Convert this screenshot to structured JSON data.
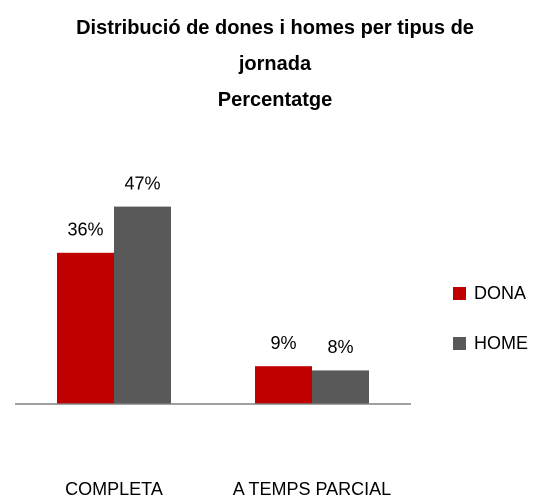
{
  "chart_data": {
    "type": "bar",
    "title": "Distribució de dones i homes per tipus de jornada",
    "subtitle": "Percentatge",
    "categories": [
      "COMPLETA",
      "A TEMPS PARCIAL"
    ],
    "series": [
      {
        "name": "DONA",
        "color": "#c00000",
        "values": [
          36,
          9
        ],
        "value_labels": [
          "36%",
          "9%"
        ]
      },
      {
        "name": "HOME",
        "color": "#595959",
        "values": [
          47,
          8
        ],
        "value_labels": [
          "47%",
          "8%"
        ]
      }
    ],
    "ylim": [
      0,
      50
    ],
    "legend": "right"
  }
}
